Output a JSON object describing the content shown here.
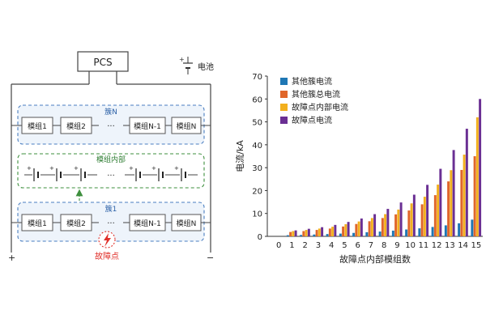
{
  "diagram": {
    "pcs_label": "PCS",
    "battery_legend_label": "电池",
    "cluster_n_label": "簇N",
    "cluster_1_label": "簇1",
    "module_internal_label": "模组内部",
    "fault_point_label": "故障点",
    "plus_sign": "+",
    "minus_sign": "−",
    "ellipsis": "···",
    "modules_top": [
      "模组1",
      "模组2",
      "模组N-1",
      "模组N"
    ],
    "modules_bottom": [
      "模组1",
      "模组2",
      "模组N-1",
      "模组N"
    ],
    "colors": {
      "cluster_border": "#4a7ec0",
      "cluster_fill": "#eef4fb",
      "cluster_label": "#2f63a8",
      "internal_border": "#3e8f3e",
      "internal_label": "#2e7d32",
      "fault_red": "#e0302a"
    }
  },
  "chart_data": {
    "type": "bar",
    "xlabel": "故障点内部模组数",
    "ylabel": "电流/kA",
    "ylim": [
      0,
      70
    ],
    "yticks": [
      0,
      10,
      20,
      30,
      40,
      50,
      60,
      70
    ],
    "categories": [
      "0",
      "1",
      "2",
      "3",
      "4",
      "5",
      "6",
      "7",
      "8",
      "9",
      "10",
      "11",
      "12",
      "13",
      "14",
      "15"
    ],
    "legend_position": "top-left",
    "grid": false,
    "series": [
      {
        "name": "其他簇电流",
        "color": "#1f77b4",
        "values": [
          0,
          0.5,
          0.6,
          0.8,
          1.0,
          1.2,
          1.5,
          1.8,
          2.1,
          2.5,
          3.0,
          3.5,
          4.1,
          4.8,
          5.7,
          7.3
        ]
      },
      {
        "name": "其他簇总电流",
        "color": "#e0662a",
        "values": [
          0,
          1.9,
          2.3,
          2.8,
          3.4,
          4.3,
          5.4,
          6.6,
          8.0,
          9.6,
          11.3,
          14.0,
          18.0,
          24.0,
          29.0,
          35.0
        ]
      },
      {
        "name": "故障点内部电流",
        "color": "#f2b01e",
        "values": [
          0,
          2.3,
          2.8,
          3.4,
          4.2,
          5.3,
          6.5,
          8.0,
          9.7,
          11.7,
          14.4,
          17.3,
          22.6,
          28.9,
          35.7,
          52.0
        ]
      },
      {
        "name": "故障点电流",
        "color": "#6a2f93",
        "values": [
          0,
          2.6,
          3.3,
          4.0,
          5.0,
          6.3,
          7.8,
          9.7,
          12.0,
          14.8,
          18.2,
          22.5,
          29.5,
          37.7,
          47.0,
          60.0
        ]
      }
    ]
  }
}
